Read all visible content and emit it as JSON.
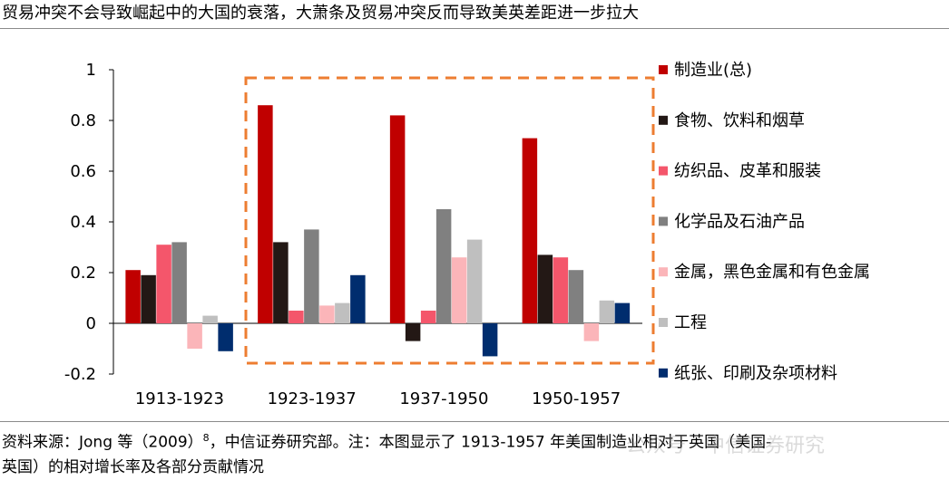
{
  "title": "贸易冲突不会导致崛起中的大国的衰落，大萧条及贸易冲突反而导致美英差距进一步拉大",
  "source": {
    "prefix": "资料来源：Jong 等（2009）",
    "superscript": "8",
    "text": "，中信证券研究部。注：本图显示了 1913-1957 年美国制造业相对于英国（美国-",
    "line2": "英国）的相对增长率及各部分贡献情况"
  },
  "watermark": "公众号 · 中信证券研究",
  "chart_data": {
    "type": "bar",
    "categories": [
      "1913-1923",
      "1923-1937",
      "1937-1950",
      "1950-1957"
    ],
    "ylim": [
      -0.2,
      1
    ],
    "yticks": [
      -0.2,
      0,
      0.2,
      0.4,
      0.6,
      0.8,
      1
    ],
    "ytick_labels": [
      "-0.2",
      "0",
      "0.2",
      "0.4",
      "0.6",
      "0.8",
      "1"
    ],
    "grid": false,
    "legend_position": "right",
    "highlight": {
      "style": "dashed-box",
      "color": "#ED7D31",
      "categories": [
        "1923-1937",
        "1937-1950",
        "1950-1957"
      ]
    },
    "series": [
      {
        "name": "制造业(总)",
        "color": "#C00000",
        "values": [
          0.21,
          0.86,
          0.82,
          0.73
        ]
      },
      {
        "name": "食物、饮料和烟草",
        "color": "#231815",
        "values": [
          0.19,
          0.32,
          -0.07,
          0.27
        ]
      },
      {
        "name": "纺织品、皮革和服装",
        "color": "#F4566B",
        "values": [
          0.31,
          0.05,
          0.05,
          0.26
        ]
      },
      {
        "name": "化学品及石油产品",
        "color": "#808080",
        "values": [
          0.32,
          0.37,
          0.45,
          0.21
        ]
      },
      {
        "name": "金属，黑色金属和有色金属",
        "color": "#FBB5B9",
        "values": [
          -0.1,
          0.07,
          0.26,
          -0.07
        ]
      },
      {
        "name": "工程",
        "color": "#BFBFBF",
        "values": [
          0.03,
          0.08,
          0.33,
          0.09
        ]
      },
      {
        "name": "纸张、印刷及杂项材料",
        "color": "#002D6E",
        "values": [
          -0.11,
          0.19,
          -0.13,
          0.08
        ]
      }
    ]
  }
}
